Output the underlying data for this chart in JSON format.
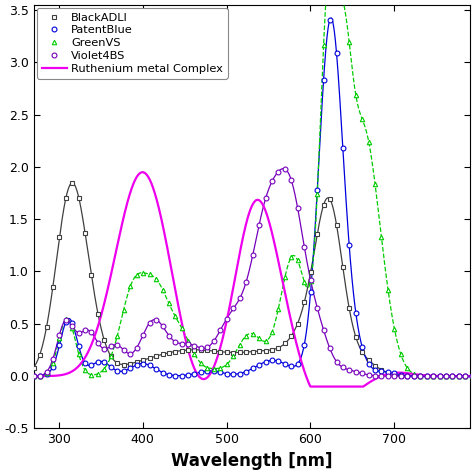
{
  "title": "",
  "xlabel": "Wavelength [nm]",
  "ylabel": "",
  "xlim": [
    270,
    790
  ],
  "ylim": [
    -0.5,
    3.55
  ],
  "yticks": [
    -0.5,
    0.0,
    0.5,
    1.0,
    1.5,
    2.0,
    2.5,
    3.0,
    3.5
  ],
  "xticks": [
    300,
    400,
    500,
    600,
    700
  ],
  "legend": [
    "BlackADLI",
    "PatentBlue",
    "GreenVS",
    "Violet4BS",
    "Ruthenium metal Complex"
  ],
  "colors": {
    "BlackADLI": "#404040",
    "PatentBlue": "#0000dd",
    "GreenVS": "#00cc00",
    "Violet4BS": "#7700bb",
    "Ruthenium": "#ee00ee"
  },
  "background": "#ffffff"
}
